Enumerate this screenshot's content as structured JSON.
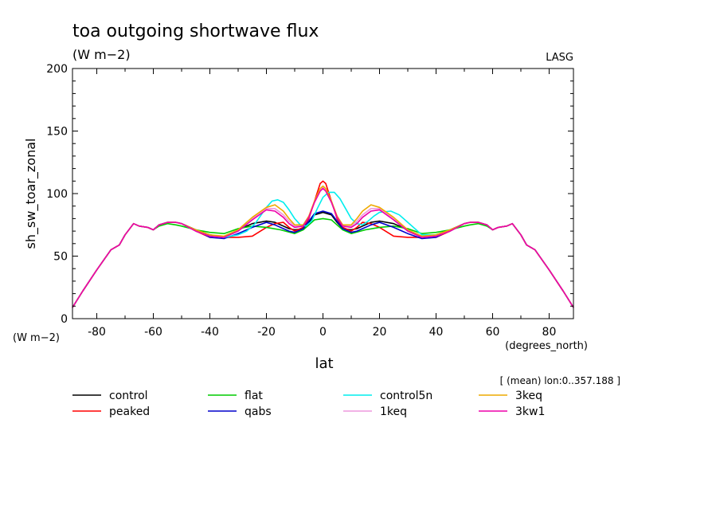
{
  "chart_data": {
    "type": "line",
    "title": "toa outgoing shortwave flux",
    "subtitle": "(W m−2)",
    "source_label": "LASG",
    "xlabel": "lat",
    "x_units": "(degrees_north)",
    "ylabel": "sh_sw_toar_zonal",
    "y_units": "(W m−2)",
    "note": "[ (mean) lon:0..357.188 ]",
    "xlim": [
      -88.6,
      88.6
    ],
    "ylim": [
      0,
      200
    ],
    "xticks": [
      -80,
      -60,
      -40,
      -20,
      0,
      20,
      40,
      60,
      80
    ],
    "yticks": [
      0,
      50,
      100,
      150,
      200
    ],
    "grid": false,
    "legend_position": "bottom",
    "series": [
      {
        "name": "control",
        "color": "#000000",
        "x": [
          -88.6,
          -85,
          -80,
          -75,
          -72,
          -70,
          -67,
          -65,
          -62,
          -60,
          -58,
          -55,
          -52,
          -50,
          -45,
          -40,
          -35,
          -30,
          -25,
          -20,
          -17,
          -14,
          -12,
          -10,
          -7,
          -5,
          -3,
          0,
          3,
          5,
          7,
          10,
          12,
          14,
          17,
          20,
          25,
          30,
          35,
          40,
          45,
          50,
          52,
          55,
          58,
          60,
          62,
          65,
          67,
          70,
          72,
          75,
          80,
          85,
          88.6
        ],
        "y": [
          9,
          22,
          39,
          55,
          59,
          67,
          76,
          74,
          73,
          71,
          75,
          77,
          77,
          76,
          71,
          67,
          65,
          71,
          76,
          78,
          77,
          74,
          72,
          71,
          72,
          77,
          83,
          85,
          83,
          77,
          72,
          71,
          72,
          74,
          77,
          78,
          76,
          71,
          65,
          67,
          71,
          76,
          77,
          77,
          75,
          71,
          73,
          74,
          76,
          67,
          59,
          55,
          39,
          22,
          9
        ]
      },
      {
        "name": "peaked",
        "color": "#ff0000",
        "x": [
          -88.6,
          -85,
          -80,
          -75,
          -72,
          -70,
          -67,
          -65,
          -62,
          -60,
          -58,
          -55,
          -52,
          -50,
          -45,
          -40,
          -35,
          -30,
          -25,
          -20,
          -17,
          -14,
          -12,
          -10,
          -7,
          -5,
          -3,
          -1,
          0,
          1,
          3,
          5,
          7,
          10,
          12,
          14,
          17,
          20,
          25,
          30,
          35,
          40,
          45,
          50,
          52,
          55,
          58,
          60,
          62,
          65,
          67,
          70,
          72,
          75,
          80,
          85,
          88.6
        ],
        "y": [
          9,
          22,
          39,
          55,
          59,
          67,
          76,
          74,
          73,
          71,
          75,
          77,
          77,
          76,
          70,
          65,
          65,
          65,
          66,
          73,
          76,
          77,
          73,
          70,
          73,
          80,
          94,
          108,
          110,
          108,
          94,
          80,
          73,
          70,
          73,
          77,
          76,
          73,
          66,
          65,
          65,
          65,
          70,
          76,
          77,
          77,
          75,
          71,
          73,
          74,
          76,
          67,
          59,
          55,
          39,
          22,
          9
        ]
      },
      {
        "name": "flat",
        "color": "#00cc00",
        "x": [
          -88.6,
          -85,
          -80,
          -75,
          -72,
          -70,
          -67,
          -65,
          -62,
          -60,
          -58,
          -55,
          -52,
          -50,
          -45,
          -40,
          -35,
          -30,
          -25,
          -20,
          -15,
          -10,
          -7,
          -5,
          -3,
          0,
          3,
          5,
          7,
          10,
          15,
          20,
          25,
          30,
          35,
          40,
          45,
          50,
          52,
          55,
          58,
          60,
          62,
          65,
          67,
          70,
          72,
          75,
          80,
          85,
          88.6
        ],
        "y": [
          9,
          22,
          39,
          55,
          59,
          67,
          76,
          74,
          73,
          71,
          74,
          76,
          75,
          74,
          71,
          69,
          68,
          72,
          74,
          73,
          71,
          68,
          71,
          75,
          79,
          80,
          79,
          75,
          71,
          68,
          71,
          73,
          74,
          72,
          68,
          69,
          71,
          74,
          75,
          76,
          74,
          71,
          73,
          74,
          76,
          67,
          59,
          55,
          39,
          22,
          9
        ]
      },
      {
        "name": "qabs",
        "color": "#0000cc",
        "x": [
          -88.6,
          -85,
          -80,
          -75,
          -72,
          -70,
          -67,
          -65,
          -62,
          -60,
          -58,
          -55,
          -52,
          -50,
          -45,
          -40,
          -35,
          -30,
          -25,
          -20,
          -17,
          -14,
          -12,
          -10,
          -7,
          -5,
          -3,
          0,
          3,
          5,
          7,
          10,
          12,
          14,
          17,
          20,
          25,
          30,
          35,
          40,
          45,
          50,
          52,
          55,
          58,
          60,
          62,
          65,
          67,
          70,
          72,
          75,
          80,
          85,
          88.6
        ],
        "y": [
          9,
          22,
          39,
          55,
          59,
          67,
          76,
          74,
          73,
          71,
          75,
          77,
          77,
          76,
          71,
          65,
          64,
          68,
          73,
          77,
          75,
          72,
          70,
          69,
          72,
          78,
          84,
          86,
          84,
          78,
          72,
          69,
          70,
          72,
          75,
          77,
          73,
          68,
          64,
          65,
          71,
          76,
          77,
          77,
          75,
          71,
          73,
          74,
          76,
          67,
          59,
          55,
          39,
          22,
          9
        ]
      },
      {
        "name": "control5n",
        "color": "#00eeee",
        "x": [
          -88.6,
          -85,
          -80,
          -75,
          -72,
          -70,
          -67,
          -65,
          -62,
          -60,
          -58,
          -55,
          -52,
          -50,
          -45,
          -40,
          -35,
          -30,
          -27,
          -24,
          -20,
          -18,
          -16,
          -14,
          -12,
          -10,
          -8,
          -6,
          -4,
          -2,
          0,
          2,
          4,
          6,
          8,
          10,
          12,
          14,
          16,
          18,
          20,
          24,
          27,
          30,
          35,
          40,
          45,
          50,
          52,
          55,
          58,
          60,
          62,
          65,
          67,
          70,
          72,
          75,
          80,
          85,
          88.6
        ],
        "y": [
          9,
          22,
          39,
          55,
          59,
          67,
          76,
          74,
          73,
          71,
          75,
          77,
          77,
          76,
          70,
          66,
          65,
          67,
          70,
          76,
          89,
          94,
          95,
          93,
          87,
          80,
          75,
          74,
          78,
          88,
          97,
          101,
          101,
          96,
          88,
          80,
          76,
          75,
          78,
          82,
          85,
          86,
          83,
          77,
          67,
          67,
          70,
          76,
          77,
          77,
          75,
          71,
          73,
          74,
          76,
          67,
          59,
          55,
          39,
          22,
          9
        ]
      },
      {
        "name": "1keq",
        "color": "#ee99dd",
        "x": [
          -88.6,
          -85,
          -80,
          -75,
          -72,
          -70,
          -67,
          -65,
          -62,
          -60,
          -58,
          -55,
          -52,
          -50,
          -45,
          -40,
          -35,
          -30,
          -25,
          -20,
          -17,
          -14,
          -12,
          -10,
          -7,
          -5,
          -3,
          -1,
          0,
          1,
          3,
          5,
          7,
          10,
          12,
          14,
          17,
          20,
          25,
          30,
          35,
          40,
          45,
          50,
          52,
          55,
          58,
          60,
          62,
          65,
          67,
          70,
          72,
          75,
          80,
          85,
          88.6
        ],
        "y": [
          9,
          22,
          39,
          55,
          59,
          67,
          76,
          74,
          73,
          71,
          75,
          77,
          77,
          76,
          70,
          66,
          65,
          70,
          80,
          88,
          88,
          83,
          78,
          74,
          75,
          82,
          94,
          103,
          105,
          103,
          94,
          82,
          75,
          74,
          78,
          83,
          88,
          88,
          80,
          70,
          65,
          66,
          70,
          76,
          77,
          77,
          75,
          71,
          73,
          74,
          76,
          67,
          59,
          55,
          39,
          22,
          9
        ]
      },
      {
        "name": "3keq",
        "color": "#eeaa00",
        "x": [
          -88.6,
          -85,
          -80,
          -75,
          -72,
          -70,
          -67,
          -65,
          -62,
          -60,
          -58,
          -55,
          -52,
          -50,
          -45,
          -40,
          -35,
          -30,
          -25,
          -20,
          -17,
          -14,
          -12,
          -10,
          -7,
          -5,
          -3,
          -1,
          0,
          1,
          3,
          5,
          7,
          10,
          12,
          14,
          17,
          20,
          25,
          30,
          35,
          40,
          45,
          50,
          52,
          55,
          58,
          60,
          62,
          65,
          67,
          70,
          72,
          75,
          80,
          85,
          88.6
        ],
        "y": [
          9,
          22,
          39,
          55,
          59,
          67,
          76,
          74,
          73,
          71,
          75,
          77,
          77,
          76,
          71,
          67,
          66,
          71,
          81,
          89,
          91,
          86,
          80,
          75,
          75,
          82,
          94,
          104,
          106,
          104,
          94,
          82,
          75,
          75,
          80,
          86,
          91,
          89,
          81,
          71,
          66,
          67,
          71,
          76,
          77,
          77,
          75,
          71,
          73,
          74,
          76,
          67,
          59,
          55,
          39,
          22,
          9
        ]
      },
      {
        "name": "3kw1",
        "color": "#ee00aa",
        "x": [
          -88.6,
          -85,
          -80,
          -75,
          -72,
          -70,
          -67,
          -65,
          -62,
          -60,
          -58,
          -55,
          -52,
          -50,
          -45,
          -40,
          -35,
          -30,
          -25,
          -20,
          -17,
          -14,
          -12,
          -10,
          -7,
          -5,
          -3,
          -1,
          0,
          1,
          3,
          5,
          7,
          10,
          12,
          14,
          17,
          20,
          25,
          30,
          35,
          40,
          45,
          50,
          52,
          55,
          58,
          60,
          62,
          65,
          67,
          70,
          72,
          75,
          80,
          85,
          88.6
        ],
        "y": [
          9,
          22,
          39,
          55,
          59,
          67,
          76,
          74,
          73,
          71,
          75,
          77,
          77,
          76,
          70,
          66,
          65,
          70,
          79,
          87,
          86,
          81,
          76,
          73,
          74,
          81,
          93,
          102,
          104,
          102,
          93,
          81,
          74,
          73,
          76,
          81,
          86,
          87,
          79,
          70,
          65,
          66,
          70,
          76,
          77,
          77,
          75,
          71,
          73,
          74,
          76,
          67,
          59,
          55,
          39,
          22,
          9
        ]
      }
    ]
  }
}
